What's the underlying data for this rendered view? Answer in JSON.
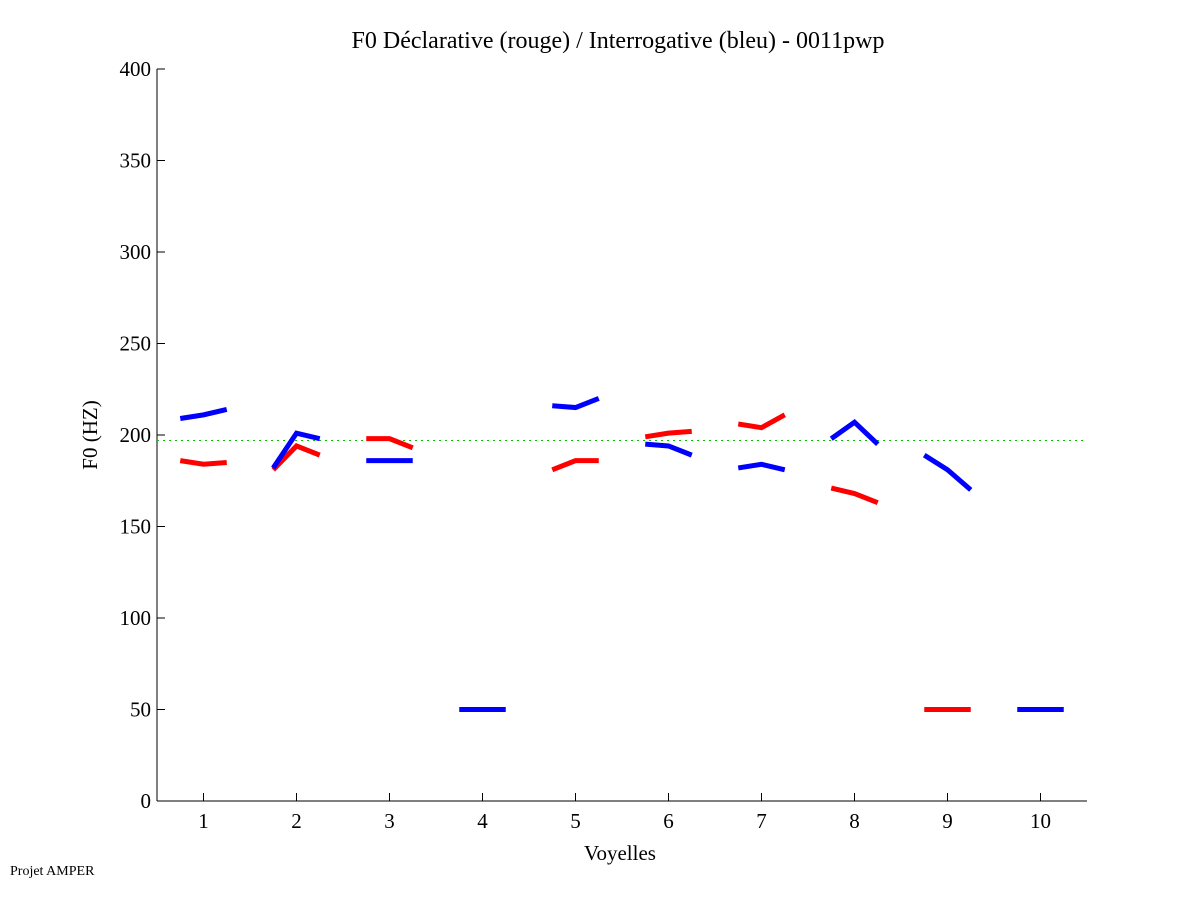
{
  "chart_data": {
    "type": "line",
    "title": "F0 Déclarative (rouge) / Interrogative (bleu) - 0011pwp",
    "xlabel": "Voyelles",
    "ylabel": "F0 (HZ)",
    "xlim": [
      0.5,
      10.5
    ],
    "ylim": [
      0,
      400
    ],
    "xticks": [
      1,
      2,
      3,
      4,
      5,
      6,
      7,
      8,
      9,
      10
    ],
    "yticks": [
      0,
      50,
      100,
      150,
      200,
      250,
      300,
      350,
      400
    ],
    "grid": false,
    "reference_line": {
      "value": 197,
      "color": "#00c000",
      "style": "dotted"
    },
    "series": [
      {
        "name": "Déclarative (rouge)",
        "color": "#ff0000",
        "segments": [
          {
            "vowel": 1,
            "values": [
              186,
              184,
              185
            ]
          },
          {
            "vowel": 2,
            "values": [
              181,
              194,
              189
            ]
          },
          {
            "vowel": 3,
            "values": [
              198,
              198,
              193
            ]
          },
          {
            "vowel": 5,
            "values": [
              181,
              186,
              186
            ]
          },
          {
            "vowel": 6,
            "values": [
              199,
              201,
              202
            ]
          },
          {
            "vowel": 7,
            "values": [
              206,
              204,
              211
            ]
          },
          {
            "vowel": 8,
            "values": [
              171,
              168,
              163
            ]
          },
          {
            "vowel": 9,
            "values": [
              50,
              50,
              50
            ]
          }
        ]
      },
      {
        "name": "Interrogative (bleu)",
        "color": "#0000ff",
        "segments": [
          {
            "vowel": 1,
            "values": [
              209,
              211,
              214
            ]
          },
          {
            "vowel": 2,
            "values": [
              182,
              201,
              198
            ]
          },
          {
            "vowel": 3,
            "values": [
              186,
              186,
              186
            ]
          },
          {
            "vowel": 4,
            "values": [
              50,
              50,
              50
            ]
          },
          {
            "vowel": 5,
            "values": [
              216,
              215,
              220
            ]
          },
          {
            "vowel": 6,
            "values": [
              195,
              194,
              189
            ]
          },
          {
            "vowel": 7,
            "values": [
              182,
              184,
              181
            ]
          },
          {
            "vowel": 8,
            "values": [
              198,
              207,
              195
            ]
          },
          {
            "vowel": 9,
            "values": [
              189,
              181,
              170
            ]
          },
          {
            "vowel": 10,
            "values": [
              50,
              50,
              50
            ]
          }
        ]
      }
    ]
  },
  "footer": "Projet AMPER"
}
